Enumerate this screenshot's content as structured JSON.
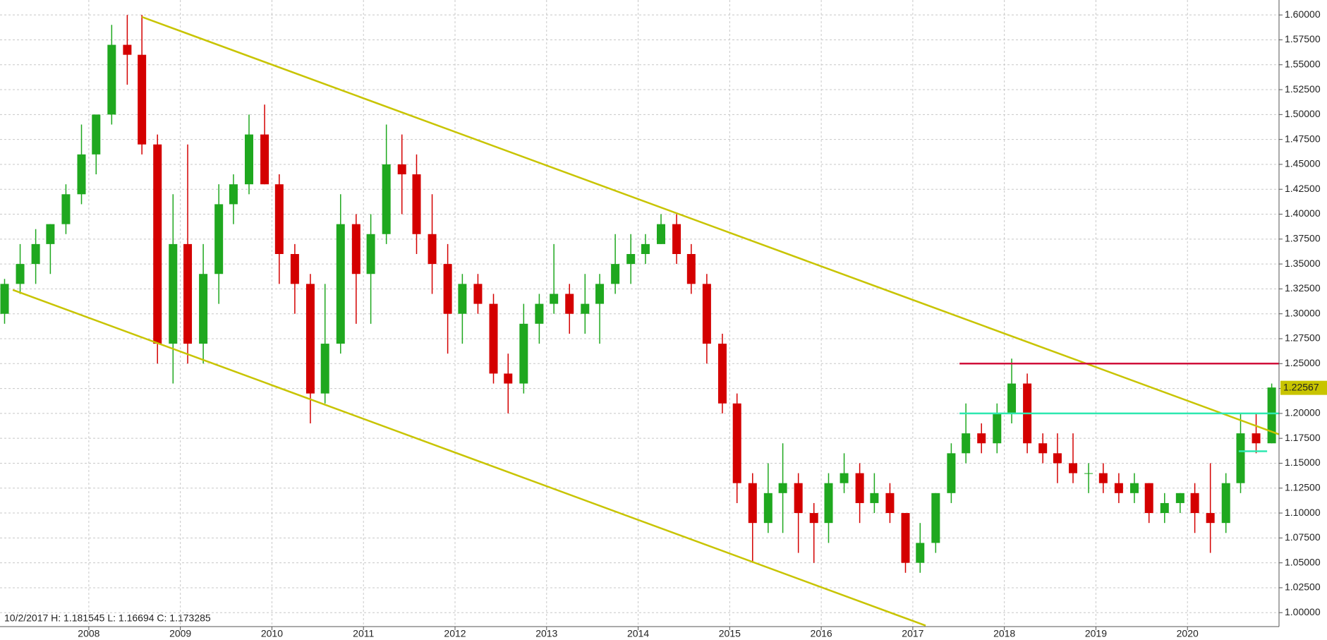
{
  "chart_data": {
    "type": "candlestick",
    "info": "10/2/2017 H: 1.181545 L: 1.16694 C: 1.173285",
    "up_color": "#1fa81f",
    "down_color": "#d40000",
    "x": [
      2007.08,
      2007.25,
      2007.42,
      2007.58,
      2007.75,
      2007.92,
      2008.08,
      2008.25,
      2008.42,
      2008.58,
      2008.75,
      2008.92,
      2009.08,
      2009.25,
      2009.42,
      2009.58,
      2009.75,
      2009.92,
      2010.08,
      2010.25,
      2010.42,
      2010.58,
      2010.75,
      2010.92,
      2011.08,
      2011.25,
      2011.42,
      2011.58,
      2011.75,
      2011.92,
      2012.08,
      2012.25,
      2012.42,
      2012.58,
      2012.75,
      2012.92,
      2013.08,
      2013.25,
      2013.42,
      2013.58,
      2013.75,
      2013.92,
      2014.08,
      2014.25,
      2014.42,
      2014.58,
      2014.75,
      2014.92,
      2015.08,
      2015.25,
      2015.42,
      2015.58,
      2015.75,
      2015.92,
      2016.08,
      2016.25,
      2016.42,
      2016.58,
      2016.75,
      2016.92,
      2017.08,
      2017.25,
      2017.42,
      2017.58,
      2017.75,
      2017.92,
      2018.08,
      2018.25,
      2018.42,
      2018.58,
      2018.75,
      2018.92,
      2019.08,
      2019.25,
      2019.42,
      2019.58,
      2019.75,
      2019.92,
      2020.08,
      2020.25,
      2020.42,
      2020.58,
      2020.75,
      2020.92
    ],
    "open": [
      1.3,
      1.33,
      1.35,
      1.37,
      1.39,
      1.42,
      1.46,
      1.5,
      1.57,
      1.56,
      1.47,
      1.27,
      1.37,
      1.27,
      1.34,
      1.41,
      1.43,
      1.48,
      1.43,
      1.36,
      1.33,
      1.22,
      1.27,
      1.39,
      1.34,
      1.38,
      1.45,
      1.44,
      1.38,
      1.35,
      1.3,
      1.33,
      1.31,
      1.24,
      1.23,
      1.29,
      1.31,
      1.32,
      1.3,
      1.31,
      1.33,
      1.35,
      1.36,
      1.37,
      1.39,
      1.36,
      1.33,
      1.27,
      1.21,
      1.13,
      1.09,
      1.12,
      1.13,
      1.1,
      1.09,
      1.13,
      1.14,
      1.11,
      1.12,
      1.1,
      1.05,
      1.07,
      1.12,
      1.16,
      1.18,
      1.17,
      1.2,
      1.23,
      1.17,
      1.16,
      1.15,
      1.14,
      1.14,
      1.13,
      1.12,
      1.13,
      1.1,
      1.11,
      1.12,
      1.1,
      1.09,
      1.13,
      1.18,
      1.17
    ],
    "high": [
      1.335,
      1.37,
      1.385,
      1.39,
      1.43,
      1.49,
      1.5,
      1.59,
      1.6,
      1.6,
      1.48,
      1.42,
      1.47,
      1.37,
      1.43,
      1.44,
      1.5,
      1.51,
      1.44,
      1.37,
      1.34,
      1.33,
      1.42,
      1.4,
      1.4,
      1.49,
      1.48,
      1.46,
      1.42,
      1.37,
      1.34,
      1.34,
      1.32,
      1.26,
      1.31,
      1.32,
      1.37,
      1.33,
      1.34,
      1.34,
      1.38,
      1.38,
      1.38,
      1.4,
      1.4,
      1.37,
      1.34,
      1.28,
      1.22,
      1.14,
      1.15,
      1.17,
      1.14,
      1.11,
      1.14,
      1.16,
      1.15,
      1.14,
      1.13,
      1.1,
      1.09,
      1.12,
      1.17,
      1.21,
      1.19,
      1.21,
      1.255,
      1.24,
      1.18,
      1.18,
      1.18,
      1.15,
      1.15,
      1.14,
      1.14,
      1.13,
      1.12,
      1.12,
      1.13,
      1.15,
      1.14,
      1.2,
      1.2,
      1.23
    ],
    "low": [
      1.29,
      1.32,
      1.33,
      1.34,
      1.38,
      1.41,
      1.44,
      1.49,
      1.53,
      1.46,
      1.25,
      1.23,
      1.25,
      1.25,
      1.31,
      1.39,
      1.42,
      1.43,
      1.33,
      1.3,
      1.19,
      1.21,
      1.26,
      1.29,
      1.29,
      1.37,
      1.4,
      1.36,
      1.32,
      1.26,
      1.27,
      1.3,
      1.23,
      1.2,
      1.22,
      1.27,
      1.3,
      1.28,
      1.28,
      1.27,
      1.32,
      1.33,
      1.35,
      1.37,
      1.35,
      1.32,
      1.25,
      1.2,
      1.11,
      1.05,
      1.08,
      1.08,
      1.06,
      1.05,
      1.07,
      1.12,
      1.09,
      1.1,
      1.09,
      1.04,
      1.04,
      1.06,
      1.11,
      1.15,
      1.16,
      1.16,
      1.19,
      1.16,
      1.15,
      1.13,
      1.13,
      1.12,
      1.12,
      1.11,
      1.11,
      1.09,
      1.09,
      1.1,
      1.08,
      1.06,
      1.08,
      1.12,
      1.16,
      1.17
    ],
    "close": [
      1.33,
      1.35,
      1.37,
      1.39,
      1.42,
      1.46,
      1.5,
      1.57,
      1.56,
      1.47,
      1.27,
      1.37,
      1.27,
      1.34,
      1.41,
      1.43,
      1.48,
      1.43,
      1.36,
      1.33,
      1.22,
      1.27,
      1.39,
      1.34,
      1.38,
      1.45,
      1.44,
      1.38,
      1.35,
      1.3,
      1.33,
      1.31,
      1.24,
      1.23,
      1.29,
      1.31,
      1.32,
      1.3,
      1.31,
      1.33,
      1.35,
      1.36,
      1.37,
      1.39,
      1.36,
      1.33,
      1.27,
      1.21,
      1.13,
      1.09,
      1.12,
      1.13,
      1.1,
      1.09,
      1.13,
      1.14,
      1.11,
      1.12,
      1.1,
      1.05,
      1.07,
      1.12,
      1.16,
      1.18,
      1.17,
      1.2,
      1.23,
      1.17,
      1.16,
      1.15,
      1.14,
      1.14,
      1.13,
      1.12,
      1.13,
      1.1,
      1.11,
      1.12,
      1.1,
      1.09,
      1.13,
      1.18,
      1.17,
      1.226
    ],
    "last_price": 1.22567,
    "last_price_color": "#c8c400",
    "lines": [
      {
        "color": "#c8c400",
        "x": [
          2008.58,
          2021.0
        ],
        "y": [
          1.598,
          1.179
        ]
      },
      {
        "color": "#c8c400",
        "x": [
          2007.17,
          2017.14
        ],
        "y": [
          1.324,
          0.987
        ]
      },
      {
        "color": "#d0103a",
        "x": [
          2017.51,
          2021.0
        ],
        "y": [
          1.25,
          1.25
        ]
      },
      {
        "color": "#2ee8b0",
        "x": [
          2017.51,
          2021.0
        ],
        "y": [
          1.2,
          1.2
        ]
      },
      {
        "color": "#2ee8b0",
        "x": [
          2020.56,
          2020.87
        ],
        "y": [
          1.162,
          1.162
        ]
      }
    ],
    "xlim": [
      2007.03,
      2021.0
    ],
    "xticks": [
      2008,
      2009,
      2010,
      2011,
      2012,
      2013,
      2014,
      2015,
      2016,
      2017,
      2018,
      2019,
      2020
    ],
    "ylim": [
      0.986,
      1.615
    ],
    "yticks": [
      {
        "value": 1.0,
        "label": "1.00000"
      },
      {
        "value": 1.025,
        "label": "1.02500"
      },
      {
        "value": 1.05,
        "label": "1.05000"
      },
      {
        "value": 1.075,
        "label": "1.07500"
      },
      {
        "value": 1.1,
        "label": "1.10000"
      },
      {
        "value": 1.125,
        "label": "1.12500"
      },
      {
        "value": 1.15,
        "label": "1.15000"
      },
      {
        "value": 1.175,
        "label": "1.17500"
      },
      {
        "value": 1.2,
        "label": "1.20000"
      },
      {
        "value": 1.225,
        "label": "1.22500"
      },
      {
        "value": 1.25,
        "label": "1.25000"
      },
      {
        "value": 1.275,
        "label": "1.27500"
      },
      {
        "value": 1.3,
        "label": "1.30000"
      },
      {
        "value": 1.325,
        "label": "1.32500"
      },
      {
        "value": 1.35,
        "label": "1.35000"
      },
      {
        "value": 1.375,
        "label": "1.37500"
      },
      {
        "value": 1.4,
        "label": "1.40000"
      },
      {
        "value": 1.425,
        "label": "1.42500"
      },
      {
        "value": 1.45,
        "label": "1.45000"
      },
      {
        "value": 1.475,
        "label": "1.47500"
      },
      {
        "value": 1.5,
        "label": "1.50000"
      },
      {
        "value": 1.525,
        "label": "1.52500"
      },
      {
        "value": 1.55,
        "label": "1.55000"
      },
      {
        "value": 1.575,
        "label": "1.57500"
      },
      {
        "value": 1.6,
        "label": "1.60000"
      }
    ],
    "grid": true
  }
}
